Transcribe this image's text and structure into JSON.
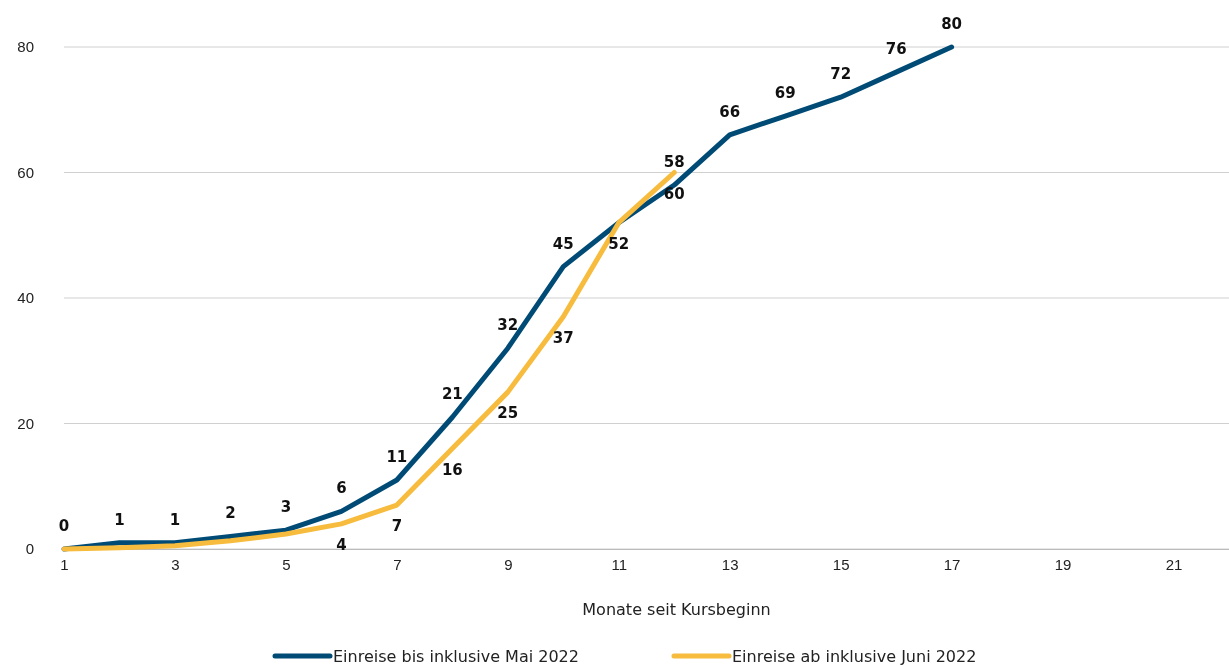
{
  "chart_data": {
    "type": "line",
    "xlabel": "Monate seit Kursbeginn",
    "x": [
      1,
      2,
      3,
      4,
      5,
      6,
      7,
      8,
      9,
      10,
      11,
      12,
      13,
      14,
      15,
      16,
      17
    ],
    "xlim": [
      1,
      22
    ],
    "xticks": [
      1,
      3,
      5,
      7,
      9,
      11,
      13,
      15,
      17,
      19,
      21
    ],
    "ylim": [
      0,
      80
    ],
    "yticks": [
      0,
      20,
      40,
      60,
      80
    ],
    "grid": "y",
    "legend": "bottom",
    "line_style": "solid",
    "marker": "none",
    "series": [
      {
        "name": "Einreise bis inklusive Mai 2022",
        "color": "#004b76",
        "values": [
          0,
          1,
          1,
          2,
          3,
          6,
          11,
          21,
          32,
          45,
          52,
          58,
          66,
          69,
          72,
          76,
          80
        ],
        "value_labels": [
          "0",
          "1",
          "1",
          "2",
          "3",
          "6",
          "11",
          "21",
          "32",
          "45",
          null,
          "58",
          "66",
          "69",
          "72",
          "76",
          "80"
        ]
      },
      {
        "name": "Einreise ab inklusive Juni 2022",
        "color": "#f7bb3d",
        "values": [
          0,
          0.2,
          0.5,
          1.3,
          2.4,
          4,
          7,
          16,
          25,
          37,
          52,
          60,
          null,
          null,
          null,
          null,
          null
        ],
        "value_labels": [
          null,
          null,
          null,
          null,
          null,
          "4",
          "7",
          "16",
          "25",
          "37",
          "52",
          "60",
          null,
          null,
          null,
          null,
          null
        ]
      }
    ]
  }
}
